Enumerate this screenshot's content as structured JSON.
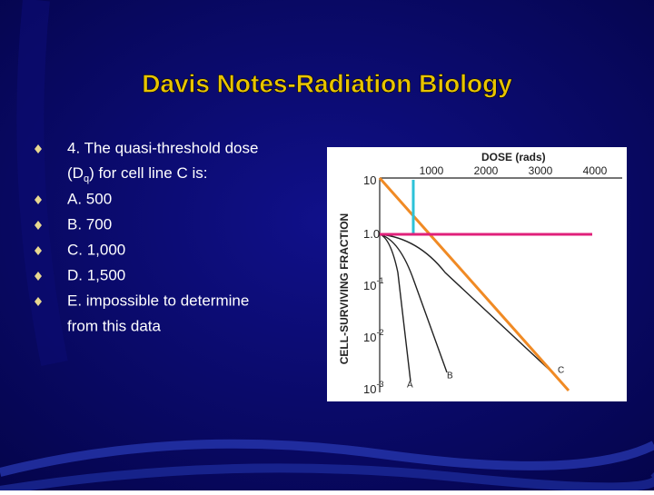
{
  "slide": {
    "title": "Davis Notes-Radiation Biology",
    "bullets": [
      {
        "parts": [
          "4.   The quasi-threshold dose",
          "(D",
          "q",
          ") for cell line C is:"
        ]
      },
      {
        "parts": [
          "A.   500"
        ]
      },
      {
        "parts": [
          "B.   700"
        ]
      },
      {
        "parts": [
          "C.   1,000"
        ]
      },
      {
        "parts": [
          "D.   1,500"
        ]
      },
      {
        "parts": [
          "E.   impossible to determine",
          "from this data"
        ]
      }
    ],
    "figure": {
      "x_title": "DOSE (rads)",
      "x_ticks": [
        "1000",
        "2000",
        "3000",
        "4000"
      ],
      "y_title": "CELL-SURVIVING FRACTION",
      "y_ticks": [
        {
          "base": "10"
        },
        {
          "base": "1.0"
        },
        {
          "base": "10",
          "exp": "-1"
        },
        {
          "base": "10",
          "exp": "-2"
        },
        {
          "base": "10",
          "exp": "-3"
        }
      ],
      "curve_labels": [
        "A",
        "B",
        "C"
      ]
    }
  }
}
